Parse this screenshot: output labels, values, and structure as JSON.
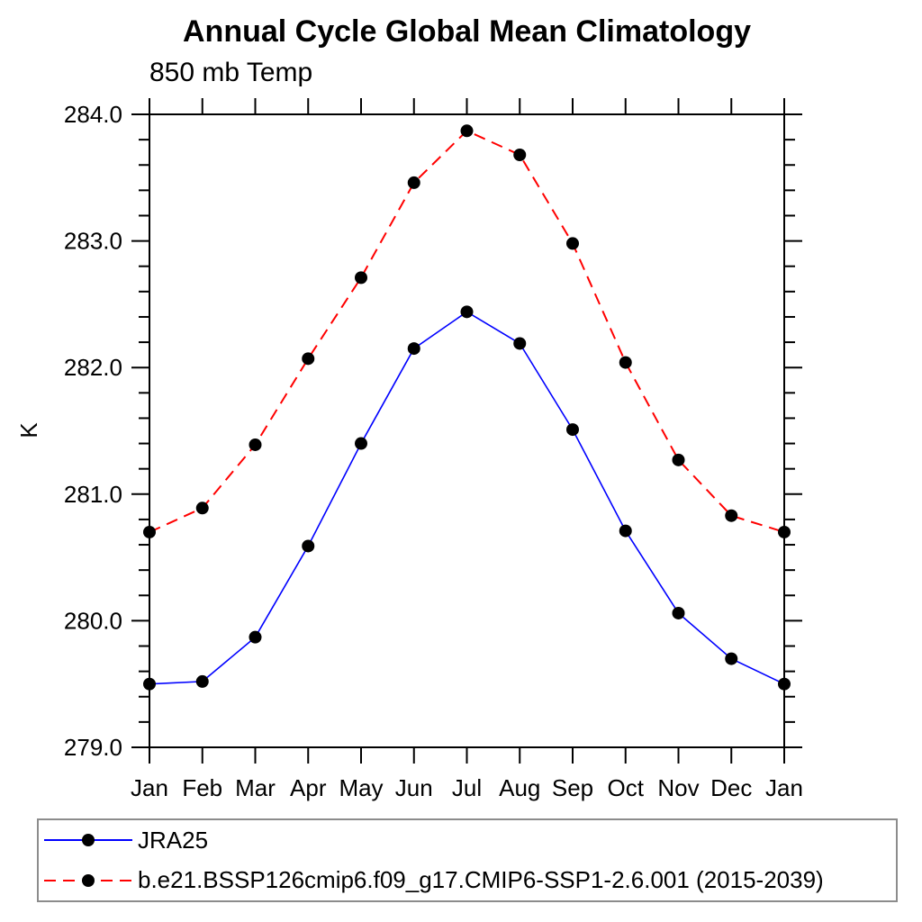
{
  "page": {
    "background": "#ffffff"
  },
  "chart": {
    "title": "Annual Cycle Global Mean Climatology",
    "subtitle": "850 mb Temp",
    "ylabel": "K"
  },
  "chart_data": {
    "type": "line",
    "title": "Annual Cycle Global Mean Climatology",
    "subtitle": "850 mb Temp",
    "xlabel": "",
    "ylabel": "K",
    "categories": [
      "Jan",
      "Feb",
      "Mar",
      "Apr",
      "May",
      "Jun",
      "Jul",
      "Aug",
      "Sep",
      "Oct",
      "Nov",
      "Dec",
      "Jan"
    ],
    "series": [
      {
        "name": "JRA25",
        "color": "#0000ff",
        "line_style": "solid",
        "marker": "filled-circle",
        "marker_color": "#000000",
        "values": [
          279.5,
          279.52,
          279.87,
          280.59,
          281.4,
          282.15,
          282.44,
          282.19,
          281.51,
          280.71,
          280.06,
          279.7,
          279.5
        ]
      },
      {
        "name": "b.e21.BSSP126cmip6.f09_g17.CMIP6-SSP1-2.6.001 (2015-2039)",
        "color": "#ff0000",
        "line_style": "dashed",
        "marker": "filled-circle",
        "marker_color": "#000000",
        "values": [
          280.7,
          280.89,
          281.39,
          282.07,
          282.71,
          283.46,
          283.87,
          283.68,
          282.98,
          282.04,
          281.27,
          280.83,
          280.7
        ]
      }
    ],
    "ylim": [
      279.0,
      284.0
    ],
    "ytick_major": 1.0,
    "ytick_minor": 0.2,
    "ytick_labels": [
      "279.0",
      "280.0",
      "281.0",
      "282.0",
      "283.0",
      "284.0"
    ],
    "grid": false,
    "axis_color": "#000000",
    "legend_position": "bottom-box"
  }
}
